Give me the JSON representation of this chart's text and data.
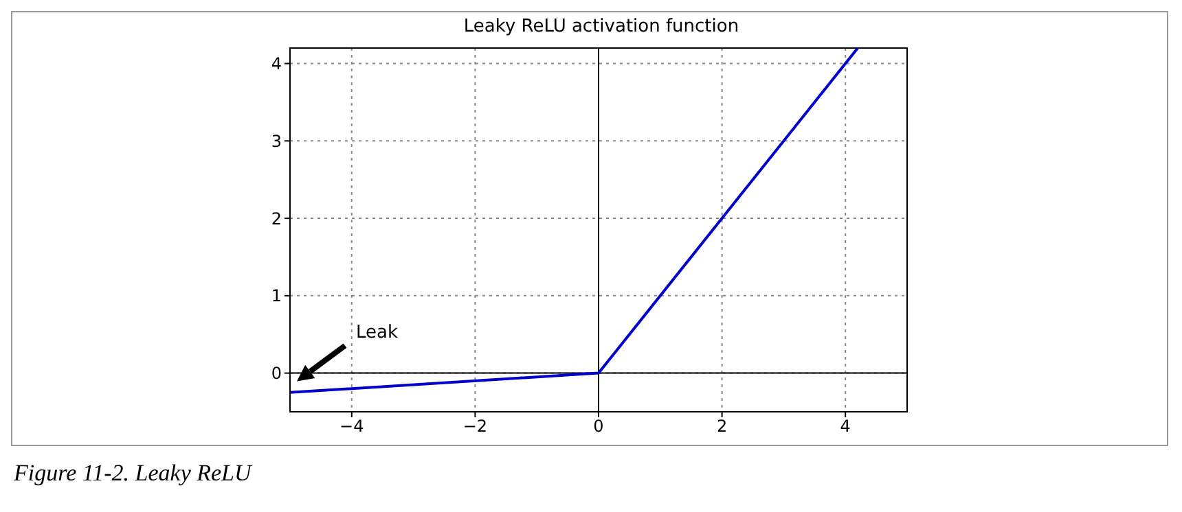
{
  "chart_data": {
    "type": "line",
    "title": "Leaky ReLU activation function",
    "x": [
      -5,
      0,
      4.2
    ],
    "series": [
      {
        "color": "#0000cc",
        "values": [
          -0.25,
          0,
          4.2
        ]
      },
      {
        "color": "#000000",
        "x": [
          -5,
          5
        ],
        "values": [
          0,
          0
        ]
      },
      {
        "color": "#000000",
        "x": [
          0,
          0
        ],
        "values": [
          -0.5,
          4.2
        ]
      }
    ],
    "xlim": [
      -5,
      5
    ],
    "ylim": [
      -0.5,
      4.2
    ],
    "xticks": [
      -4,
      -2,
      0,
      2,
      4
    ],
    "yticks": [
      0,
      1,
      2,
      3,
      4
    ],
    "grid": true,
    "marker": "none",
    "line_style": "solid",
    "annotations": [
      "Leak",
      "Figure 11-2. Leaky ReLU"
    ]
  }
}
